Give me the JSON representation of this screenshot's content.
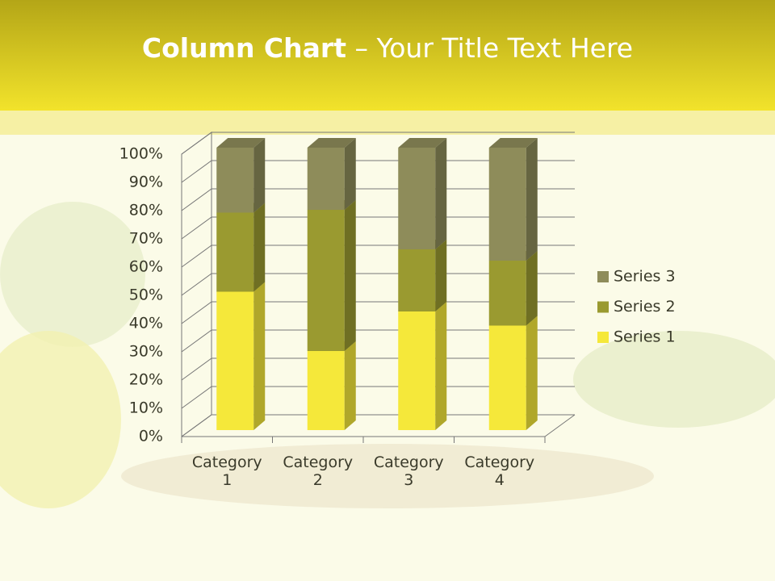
{
  "chart_data": {
    "type": "bar3d_stacked_percent",
    "title": "Column Chart",
    "title_suffix": "– Your Title Text Here",
    "categories": [
      "Category 1",
      "Category 2",
      "Category 3",
      "Category 4"
    ],
    "series": [
      {
        "name": "Series 1",
        "color": "#f5e83a",
        "values": [
          49,
          28,
          42,
          37
        ]
      },
      {
        "name": "Series 2",
        "color": "#9a9a30",
        "values": [
          28,
          50,
          22,
          23
        ]
      },
      {
        "name": "Series 3",
        "color": "#8e8c5a",
        "values": [
          23,
          22,
          36,
          40
        ]
      }
    ],
    "ylim": [
      0,
      100
    ],
    "yticks": [
      {
        "value": 0,
        "label": "0%"
      },
      {
        "value": 10,
        "label": "10%"
      },
      {
        "value": 20,
        "label": "20%"
      },
      {
        "value": 30,
        "label": "30%"
      },
      {
        "value": 40,
        "label": "40%"
      },
      {
        "value": 50,
        "label": "50%"
      },
      {
        "value": 60,
        "label": "60%"
      },
      {
        "value": 70,
        "label": "70%"
      },
      {
        "value": 80,
        "label": "80%"
      },
      {
        "value": 90,
        "label": "90%"
      },
      {
        "value": 100,
        "label": "100%"
      }
    ],
    "grid": true,
    "legend": "right"
  }
}
